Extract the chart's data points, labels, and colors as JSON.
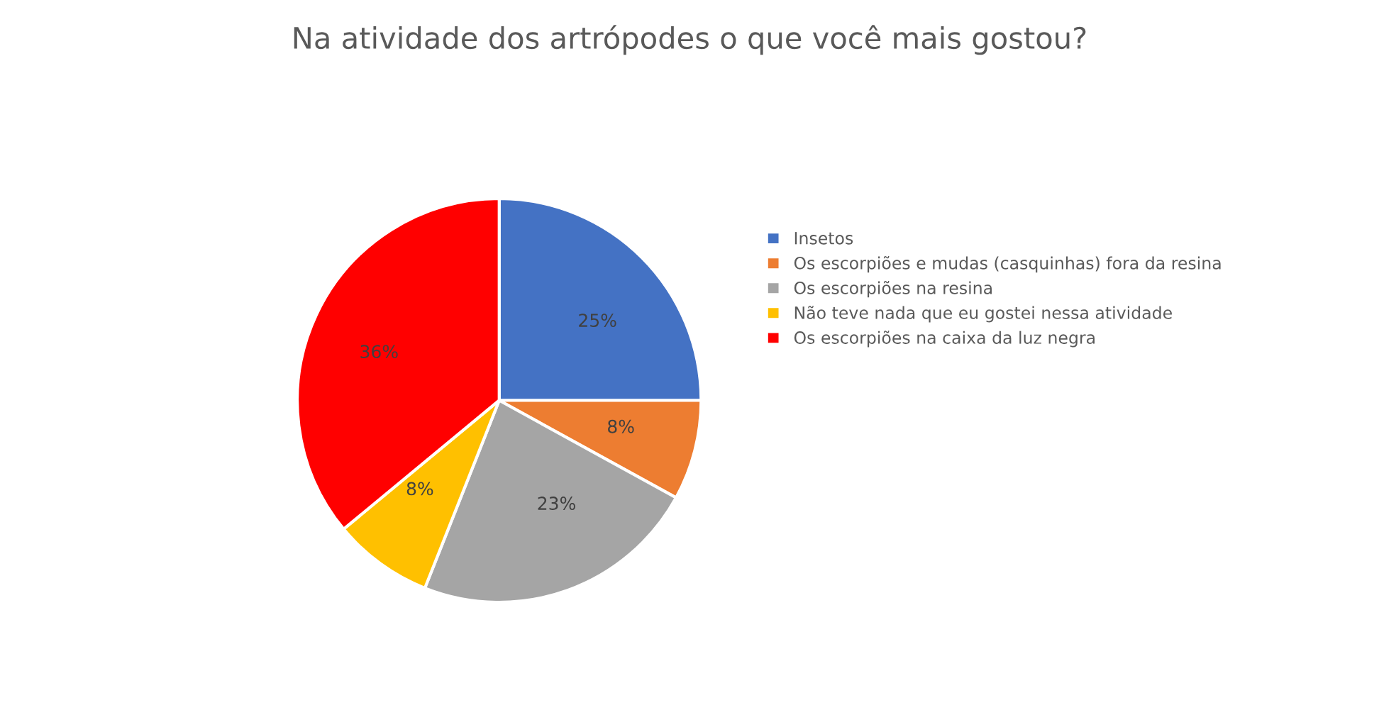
{
  "chart_data": {
    "type": "pie",
    "title": "Na atividade dos artrópodes o que você mais gostou?",
    "categories": [
      "Insetos",
      "Os escorpiões e mudas (casquinhas) fora da resina",
      "Os escorpiões na resina",
      "Não teve nada que eu gostei nessa atividade",
      "Os escorpiões na caixa da luz negra"
    ],
    "values": [
      25,
      8,
      23,
      8,
      36
    ],
    "colors": [
      "#4472c4",
      "#ed7d31",
      "#a5a5a5",
      "#ffc000",
      "#ff0000"
    ],
    "value_labels": [
      "25%",
      "8%",
      "23%",
      "8%",
      "36%"
    ],
    "legend": "right"
  }
}
